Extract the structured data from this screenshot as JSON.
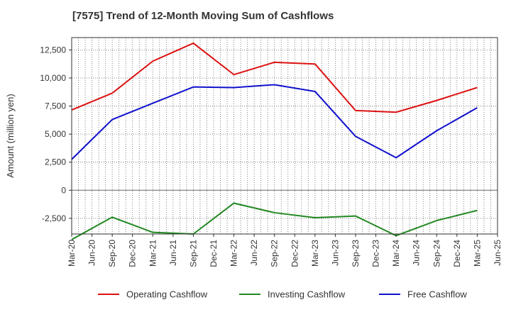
{
  "chart_data": {
    "type": "line",
    "title": "[7575]  Trend of 12-Month Moving Sum of Cashflows",
    "ylabel": "Amount (million yen)",
    "xlabel": "",
    "ylim": [
      -3900,
      13600
    ],
    "yticks": [
      -2500,
      0,
      2500,
      5000,
      7500,
      10000,
      12500
    ],
    "ytick_labels": [
      "-2,500",
      "0",
      "2,500",
      "5,000",
      "7,500",
      "10,000",
      "12,500"
    ],
    "x_ticks": [
      "Mar-20",
      "Jun-20",
      "Sep-20",
      "Dec-20",
      "Mar-21",
      "Jun-21",
      "Sep-21",
      "Dec-21",
      "Mar-22",
      "Jun-22",
      "Sep-22",
      "Dec-22",
      "Mar-23",
      "Jun-23",
      "Sep-23",
      "Dec-23",
      "Mar-24",
      "Jun-24",
      "Sep-24",
      "Dec-24",
      "Mar-25",
      "Jun-25"
    ],
    "grid": true,
    "legend_position": "bottom",
    "series": [
      {
        "name": "Operating Cashflow",
        "color": "#dd1111",
        "x": [
          "Mar-20",
          "Sep-20",
          "Mar-21",
          "Sep-21",
          "Mar-22",
          "Sep-22",
          "Mar-23",
          "Sep-23",
          "Mar-24",
          "Sep-24",
          "Mar-25"
        ],
        "values": [
          7150,
          8650,
          11500,
          13100,
          10300,
          11400,
          11250,
          7100,
          6950,
          8000,
          9150
        ]
      },
      {
        "name": "Investing Cashflow",
        "color": "#228822",
        "x": [
          "Mar-20",
          "Sep-20",
          "Mar-21",
          "Sep-21",
          "Mar-22",
          "Sep-22",
          "Mar-23",
          "Sep-23",
          "Mar-24",
          "Sep-24",
          "Mar-25"
        ],
        "values": [
          -4400,
          -2400,
          -3750,
          -3900,
          -1150,
          -2000,
          -2450,
          -2300,
          -4050,
          -2700,
          -1800
        ]
      },
      {
        "name": "Free Cashflow",
        "color": "#1111cc",
        "x": [
          "Mar-20",
          "Sep-20",
          "Mar-21",
          "Sep-21",
          "Mar-22",
          "Sep-22",
          "Mar-23",
          "Sep-23",
          "Mar-24",
          "Sep-24",
          "Mar-25"
        ],
        "values": [
          2750,
          6300,
          7750,
          9200,
          9150,
          9400,
          8800,
          4800,
          2900,
          5300,
          7350
        ]
      }
    ]
  }
}
